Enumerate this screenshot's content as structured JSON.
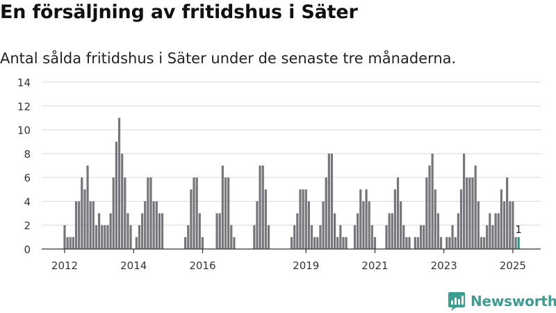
{
  "title": "En försäljning av fritidshus i Säter",
  "subtitle": "Antal sålda fritidshus i Säter under de senaste tre månaderna.",
  "brand": {
    "name": "Newsworthy",
    "color": "#3a9e92",
    "icon": "newsworthy-logo-icon"
  },
  "colors": {
    "bar": "#76757a",
    "highlight": "#2a9d8f",
    "grid": "#d9d9d9",
    "axis": "#333333"
  },
  "chart_data": {
    "type": "bar",
    "ylim": [
      0,
      14
    ],
    "yticks": [
      0,
      2,
      4,
      6,
      8,
      10,
      12,
      14
    ],
    "grid": true,
    "x_tick_labels": [
      {
        "label": "2012",
        "index": 0
      },
      {
        "label": "2014",
        "index": 24
      },
      {
        "label": "2016",
        "index": 48
      },
      {
        "label": "2019",
        "index": 84
      },
      {
        "label": "2021",
        "index": 108
      },
      {
        "label": "2023",
        "index": 132
      },
      {
        "label": "2025",
        "index": 156
      }
    ],
    "values": [
      2,
      1,
      1,
      1,
      4,
      4,
      6,
      5,
      7,
      4,
      4,
      2,
      3,
      2,
      2,
      2,
      3,
      6,
      9,
      11,
      8,
      6,
      3,
      2,
      0,
      1,
      2,
      3,
      4,
      6,
      6,
      4,
      4,
      3,
      3,
      0,
      0,
      0,
      0,
      0,
      0,
      0,
      1,
      2,
      5,
      6,
      6,
      3,
      1,
      0,
      0,
      0,
      0,
      3,
      3,
      7,
      6,
      6,
      2,
      1,
      0,
      0,
      0,
      0,
      0,
      0,
      2,
      4,
      7,
      7,
      5,
      2,
      0,
      0,
      0,
      0,
      0,
      0,
      0,
      1,
      2,
      3,
      5,
      5,
      5,
      4,
      2,
      1,
      1,
      2,
      4,
      6,
      8,
      8,
      3,
      1,
      2,
      1,
      1,
      0,
      0,
      2,
      3,
      5,
      4,
      5,
      4,
      2,
      1,
      0,
      0,
      0,
      2,
      3,
      3,
      5,
      6,
      4,
      2,
      1,
      1,
      0,
      1,
      1,
      2,
      2,
      6,
      7,
      8,
      5,
      3,
      1,
      0,
      1,
      1,
      2,
      1,
      3,
      5,
      8,
      6,
      6,
      6,
      7,
      4,
      1,
      1,
      2,
      3,
      2,
      3,
      3,
      5,
      4,
      6,
      4,
      4,
      1,
      1
    ],
    "highlight_index": 158,
    "annotation": {
      "index": 158,
      "text": "1"
    }
  }
}
